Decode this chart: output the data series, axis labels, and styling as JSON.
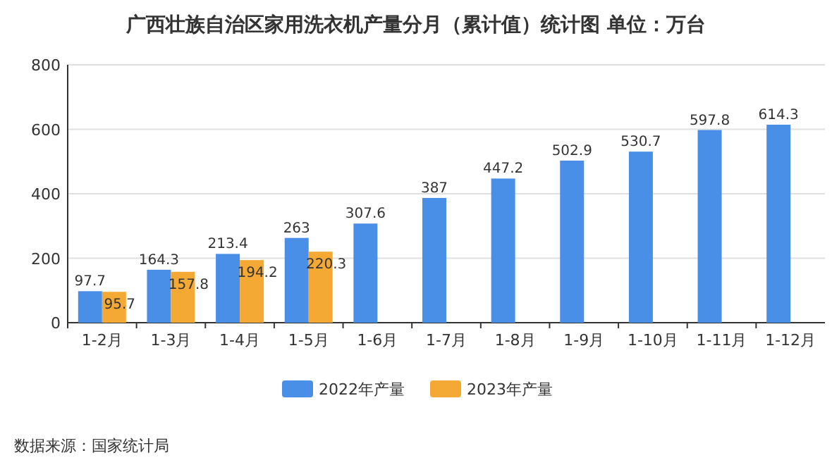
{
  "chart_data": {
    "type": "bar",
    "title": "广西壮族自治区家用洗衣机产量分月（累计值）统计图 单位：万台",
    "categories": [
      "1-2月",
      "1-3月",
      "1-4月",
      "1-5月",
      "1-6月",
      "1-7月",
      "1-8月",
      "1-9月",
      "1-10月",
      "1-11月",
      "1-12月"
    ],
    "series": [
      {
        "name": "2022年产量",
        "color": "#4a8fe7",
        "values": [
          97.7,
          164.3,
          213.4,
          263,
          307.6,
          387,
          447.2,
          502.9,
          530.7,
          597.8,
          614.3
        ]
      },
      {
        "name": "2023年产量",
        "color": "#f5a935",
        "values": [
          95.7,
          157.8,
          194.2,
          220.3,
          null,
          null,
          null,
          null,
          null,
          null,
          null
        ]
      }
    ],
    "ylim": [
      0,
      800
    ],
    "yticks": [
      0,
      200,
      400,
      600,
      800
    ],
    "grid": "y",
    "legend": "bottom",
    "data_labels": true,
    "annotations": [
      "数据来源：国家统计局"
    ]
  }
}
